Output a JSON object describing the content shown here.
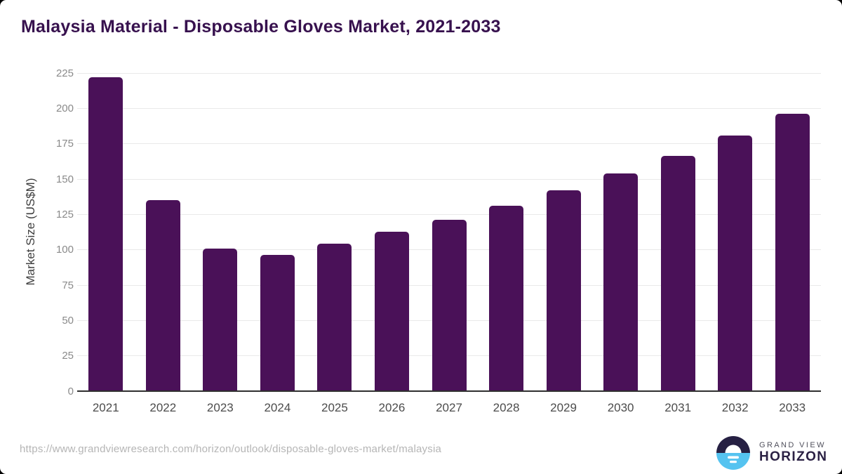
{
  "page": {
    "background_color": "#000000",
    "card_color": "#ffffff"
  },
  "chart_data": {
    "type": "bar",
    "title": "Malaysia Material - Disposable Gloves Market, 2021-2033",
    "xlabel": "",
    "ylabel": "Market Size (US$M)",
    "categories": [
      "2021",
      "2022",
      "2023",
      "2024",
      "2025",
      "2026",
      "2027",
      "2028",
      "2029",
      "2030",
      "2031",
      "2032",
      "2033"
    ],
    "values": [
      221.8,
      135.3,
      101.0,
      96.6,
      104.2,
      112.7,
      121.4,
      131.3,
      141.9,
      153.8,
      166.5,
      180.6,
      196.2
    ],
    "ylim": [
      0,
      225
    ],
    "ytick_step": 25,
    "grid": true,
    "legend_position": "none",
    "bar_color": "#4a1158",
    "gridline_color": "#e9e9e9",
    "axis_line_color": "#2f2f2f",
    "ytick_color": "#8a8a8a",
    "xtick_color": "#4c4c4c",
    "title_color": "#37114e"
  },
  "footer": {
    "source_url": "https://www.grandviewresearch.com/horizon/outlook/disposable-gloves-market/malaysia",
    "logo": {
      "line1": "GRAND VIEW",
      "line2": "HORIZON",
      "circle_top_color": "#262043",
      "circle_bottom_color": "#55c3f0",
      "sun_color": "#ffffff"
    }
  }
}
